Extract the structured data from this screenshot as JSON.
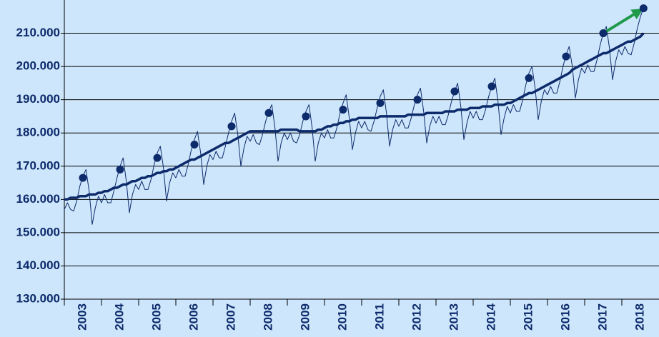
{
  "chart_data": {
    "type": "line",
    "categories": [
      "2003",
      null,
      null,
      null,
      null,
      null,
      null,
      null,
      null,
      null,
      null,
      null,
      "2004",
      null,
      null,
      null,
      null,
      null,
      null,
      null,
      null,
      null,
      null,
      null,
      "2005",
      null,
      null,
      null,
      null,
      null,
      null,
      null,
      null,
      null,
      null,
      null,
      "2006",
      null,
      null,
      null,
      null,
      null,
      null,
      null,
      null,
      null,
      null,
      null,
      "2007",
      null,
      null,
      null,
      null,
      null,
      null,
      null,
      null,
      null,
      null,
      null,
      "2008",
      null,
      null,
      null,
      null,
      null,
      null,
      null,
      null,
      null,
      null,
      null,
      "2009",
      null,
      null,
      null,
      null,
      null,
      null,
      null,
      null,
      null,
      null,
      null,
      "2010",
      null,
      null,
      null,
      null,
      null,
      null,
      null,
      null,
      null,
      null,
      null,
      "2011",
      null,
      null,
      null,
      null,
      null,
      null,
      null,
      null,
      null,
      null,
      null,
      "2012",
      null,
      null,
      null,
      null,
      null,
      null,
      null,
      null,
      null,
      null,
      null,
      "2013",
      null,
      null,
      null,
      null,
      null,
      null,
      null,
      null,
      null,
      null,
      null,
      "2014",
      null,
      null,
      null,
      null,
      null,
      null,
      null,
      null,
      null,
      null,
      null,
      "2015",
      null,
      null,
      null,
      null,
      null,
      null,
      null,
      null,
      null,
      null,
      null,
      "2016",
      null,
      null,
      null,
      null,
      null,
      null,
      null,
      null,
      null,
      null,
      null,
      "2017",
      null,
      null,
      null,
      null,
      null,
      null,
      null,
      null,
      null,
      null,
      null,
      "2018",
      null,
      null,
      null,
      null,
      null,
      null,
      null,
      null,
      null,
      null,
      null
    ],
    "series": [
      {
        "color": "#0d2a6b",
        "values": [
          157000,
          159000,
          157000,
          156500,
          159500,
          164000,
          167000,
          169000,
          162500,
          152500,
          157500,
          161000,
          159000,
          161500,
          159000,
          159000,
          162500,
          166500,
          170000,
          172500,
          165500,
          156000,
          161500,
          164500,
          163000,
          165500,
          163000,
          163000,
          166000,
          170500,
          174000,
          176000,
          169500,
          159500,
          165000,
          168000,
          166500,
          169000,
          167000,
          167000,
          170500,
          175000,
          178000,
          180500,
          174000,
          164500,
          170000,
          173500,
          172000,
          174500,
          172500,
          172500,
          176000,
          180000,
          183500,
          186000,
          179500,
          170000,
          175500,
          179000,
          177500,
          179500,
          177000,
          176500,
          179500,
          183500,
          186500,
          188500,
          181500,
          171500,
          177000,
          180000,
          178000,
          180000,
          177500,
          177000,
          179500,
          183500,
          186500,
          188500,
          181500,
          171500,
          177000,
          180000,
          178500,
          181000,
          178500,
          178500,
          181500,
          186000,
          189000,
          191500,
          184500,
          175000,
          180000,
          183500,
          181500,
          183500,
          181000,
          180500,
          183500,
          187500,
          191000,
          193000,
          186000,
          176000,
          181000,
          184000,
          182000,
          184000,
          181500,
          181500,
          184500,
          188500,
          191500,
          193500,
          186500,
          177000,
          182000,
          185000,
          183000,
          185000,
          182500,
          182500,
          185500,
          189500,
          192500,
          195000,
          188000,
          178000,
          183000,
          186500,
          184500,
          186500,
          184000,
          184000,
          187000,
          191000,
          194000,
          196500,
          189500,
          179500,
          184500,
          188000,
          186000,
          188500,
          186500,
          186500,
          190000,
          194500,
          198000,
          200000,
          193500,
          184000,
          189500,
          193000,
          191500,
          194000,
          192000,
          192000,
          195500,
          200000,
          203500,
          206000,
          200000,
          190500,
          196000,
          199500,
          198000,
          200500,
          198500,
          198500,
          202000,
          206500,
          210000,
          212000,
          205500,
          196000,
          201500,
          205000,
          203500,
          206000,
          204000,
          203500,
          207000,
          211500,
          215000,
          217500,
          null,
          null,
          null,
          null
        ]
      },
      {
        "color": "#0d2a6b",
        "values": [
          160000,
          160000,
          160500,
          160500,
          160500,
          161000,
          161000,
          161000,
          161500,
          161500,
          161500,
          162000,
          162000,
          162500,
          162500,
          163000,
          163500,
          163500,
          164000,
          164500,
          164500,
          165000,
          165500,
          165500,
          166000,
          166500,
          166500,
          167000,
          167000,
          167500,
          168000,
          168000,
          168500,
          168500,
          169000,
          169000,
          169500,
          170000,
          170500,
          171000,
          171500,
          172000,
          172000,
          172500,
          173000,
          173500,
          174000,
          174500,
          175000,
          175500,
          176000,
          176500,
          177000,
          177000,
          177500,
          178000,
          178500,
          179000,
          179500,
          180000,
          180500,
          180500,
          180500,
          180500,
          180500,
          180500,
          180500,
          180500,
          180500,
          180500,
          181000,
          181000,
          181000,
          181000,
          181000,
          181000,
          180500,
          180500,
          180500,
          180500,
          180500,
          180500,
          181000,
          181000,
          181500,
          182000,
          182000,
          182500,
          182500,
          183000,
          183000,
          183500,
          183500,
          184000,
          184000,
          184500,
          184500,
          184500,
          184500,
          184500,
          184500,
          184500,
          185000,
          185000,
          185000,
          185000,
          185000,
          185000,
          185000,
          185000,
          185000,
          185500,
          185500,
          185500,
          185500,
          185500,
          185500,
          186000,
          186000,
          186000,
          186000,
          186000,
          186000,
          186500,
          186500,
          186500,
          186500,
          187000,
          187000,
          187000,
          187000,
          187500,
          187500,
          187500,
          187500,
          188000,
          188000,
          188000,
          188000,
          188500,
          188500,
          188500,
          188500,
          189000,
          189000,
          189500,
          190000,
          190500,
          191000,
          191500,
          192000,
          192000,
          192500,
          193000,
          193500,
          194000,
          194500,
          195000,
          195500,
          196000,
          196500,
          197000,
          197500,
          198000,
          199000,
          199500,
          200000,
          200500,
          201000,
          201500,
          202000,
          202500,
          203000,
          203500,
          204000,
          204000,
          204500,
          205000,
          205500,
          206000,
          206500,
          207000,
          207500,
          207500,
          208000,
          208500,
          209000,
          210000,
          null,
          null,
          null,
          null
        ]
      },
      {
        "color": "#0d2a6b",
        "values": [
          null,
          null,
          null,
          null,
          null,
          null,
          166500,
          null,
          null,
          null,
          null,
          null,
          null,
          null,
          null,
          null,
          null,
          null,
          169000,
          null,
          null,
          null,
          null,
          null,
          null,
          null,
          null,
          null,
          null,
          null,
          172500,
          null,
          null,
          null,
          null,
          null,
          null,
          null,
          null,
          null,
          null,
          null,
          176500,
          null,
          null,
          null,
          null,
          null,
          null,
          null,
          null,
          null,
          null,
          null,
          182000,
          null,
          null,
          null,
          null,
          null,
          null,
          null,
          null,
          null,
          null,
          null,
          186000,
          null,
          null,
          null,
          null,
          null,
          null,
          null,
          null,
          null,
          null,
          null,
          185000,
          null,
          null,
          null,
          null,
          null,
          null,
          null,
          null,
          null,
          null,
          null,
          187000,
          null,
          null,
          null,
          null,
          null,
          null,
          null,
          null,
          null,
          null,
          null,
          189000,
          null,
          null,
          null,
          null,
          null,
          null,
          null,
          null,
          null,
          null,
          null,
          190000,
          null,
          null,
          null,
          null,
          null,
          null,
          null,
          null,
          null,
          null,
          null,
          192500,
          null,
          null,
          null,
          null,
          null,
          null,
          null,
          null,
          null,
          null,
          null,
          194000,
          null,
          null,
          null,
          null,
          null,
          null,
          null,
          null,
          null,
          null,
          null,
          196500,
          null,
          null,
          null,
          null,
          null,
          null,
          null,
          null,
          null,
          null,
          null,
          203000,
          null,
          null,
          null,
          null,
          null,
          null,
          null,
          null,
          null,
          null,
          null,
          210000,
          null,
          null,
          null,
          null,
          null,
          null,
          null,
          null,
          null,
          null,
          null,
          null,
          217500,
          null,
          null,
          null,
          null
        ]
      }
    ],
    "ylim": [
      130000,
      220000
    ],
    "yticks": [
      {
        "value": 130000,
        "label": "130.000"
      },
      {
        "value": 140000,
        "label": "140.000"
      },
      {
        "value": 150000,
        "label": "150.000"
      },
      {
        "value": 160000,
        "label": "160.000"
      },
      {
        "value": 170000,
        "label": "170.000"
      },
      {
        "value": 180000,
        "label": "180.000"
      },
      {
        "value": 190000,
        "label": "190.000"
      },
      {
        "value": 200000,
        "label": "200.000"
      },
      {
        "value": 210000,
        "label": "210.000"
      }
    ],
    "grid": true
  }
}
